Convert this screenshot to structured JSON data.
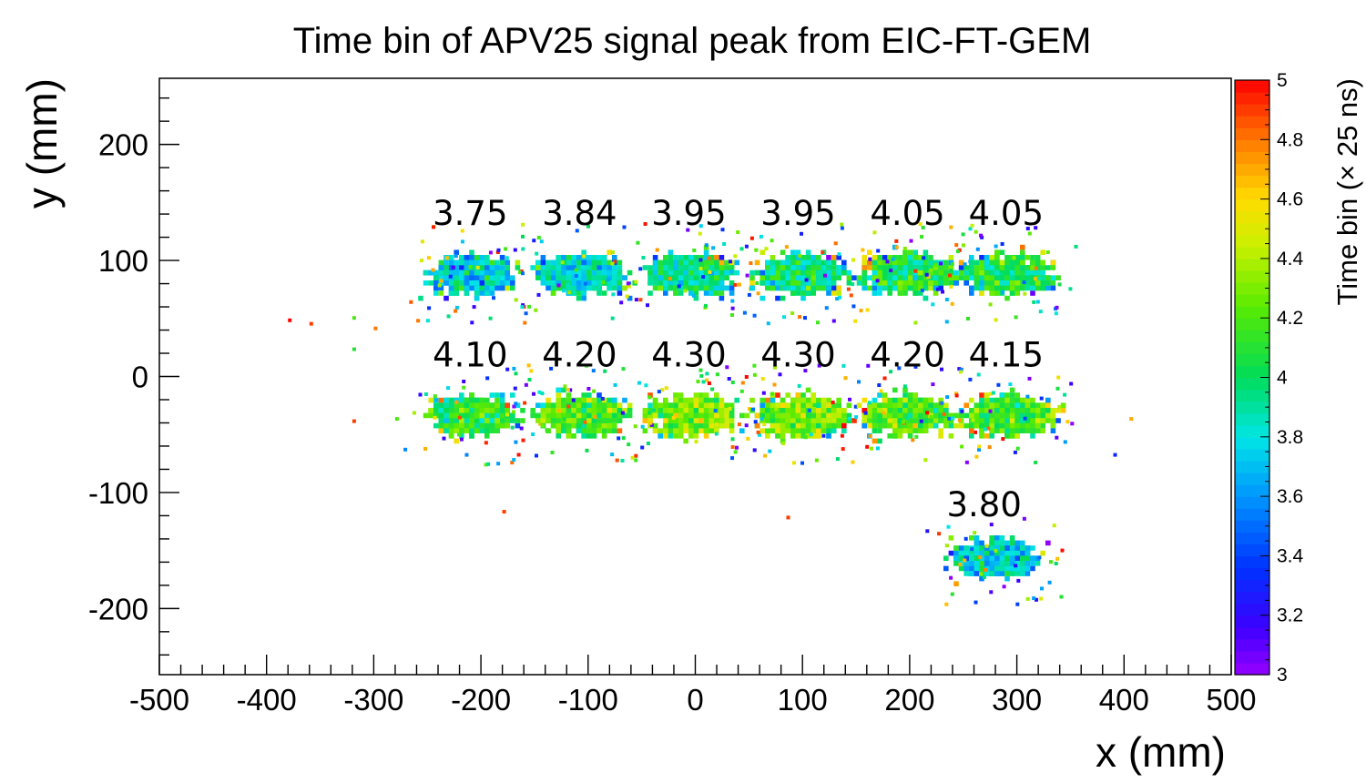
{
  "chart_data": {
    "type": "heatmap",
    "title": "Time bin of APV25 signal peak from EIC-FT-GEM",
    "xlabel": "x (mm)",
    "ylabel": "y (mm)",
    "xlim": [
      -500,
      500
    ],
    "ylim": [
      -257,
      257
    ],
    "xticks": [
      -500,
      -400,
      -300,
      -200,
      -100,
      0,
      100,
      200,
      300,
      400,
      500
    ],
    "xtick_labels": [
      "-500",
      "-400",
      "-300",
      "-200",
      "-100",
      "0",
      "100",
      "200",
      "300",
      "400",
      "500"
    ],
    "yticks": [
      -200,
      -100,
      0,
      100,
      200
    ],
    "ytick_labels": [
      "-200",
      "-100",
      "0",
      "100",
      "200"
    ],
    "colorbar": {
      "title": "Time bin (× 25 ns)",
      "range": [
        3,
        5
      ],
      "ticks": [
        3,
        3.2,
        3.4,
        3.6,
        3.8,
        4,
        4.2,
        4.4,
        4.6,
        4.8,
        5
      ],
      "tick_labels": [
        "3",
        "3.2",
        "3.4",
        "3.6",
        "3.8",
        "4",
        "4.2",
        "4.4",
        "4.6",
        "4.8",
        "5"
      ]
    },
    "clusters": [
      {
        "x": -210,
        "y": 90,
        "mean": 3.75,
        "label": "3.75"
      },
      {
        "x": -108,
        "y": 90,
        "mean": 3.84,
        "label": "3.84"
      },
      {
        "x": -6,
        "y": 90,
        "mean": 3.95,
        "label": "3.95"
      },
      {
        "x": 96,
        "y": 90,
        "mean": 3.95,
        "label": "3.95"
      },
      {
        "x": 198,
        "y": 90,
        "mean": 4.05,
        "label": "4.05"
      },
      {
        "x": 290,
        "y": 90,
        "mean": 4.05,
        "label": "4.05"
      },
      {
        "x": -210,
        "y": -32,
        "mean": 4.1,
        "label": "4.10"
      },
      {
        "x": -108,
        "y": -32,
        "mean": 4.2,
        "label": "4.20"
      },
      {
        "x": -6,
        "y": -32,
        "mean": 4.3,
        "label": "4.30"
      },
      {
        "x": 96,
        "y": -32,
        "mean": 4.3,
        "label": "4.30"
      },
      {
        "x": 198,
        "y": -32,
        "mean": 4.2,
        "label": "4.20"
      },
      {
        "x": 290,
        "y": -32,
        "mean": 4.15,
        "label": "4.15"
      },
      {
        "x": 278,
        "y": -155,
        "mean": 3.8,
        "label": "3.80"
      }
    ]
  }
}
